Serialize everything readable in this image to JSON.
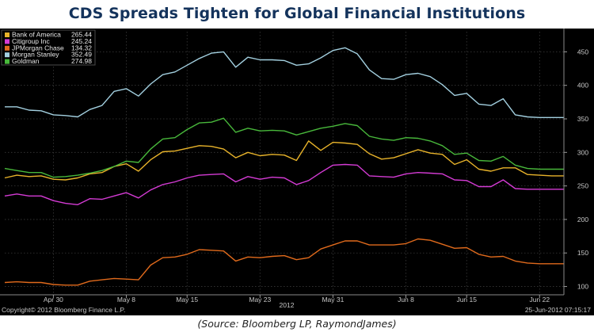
{
  "title": "CDS Spreads Tighten for Global Financial Institutions",
  "source": "(Source: Bloomberg LP, RaymondJames)",
  "footer": {
    "copyright": "Copyright© 2012 Bloomberg Finance L.P.",
    "timestamp": "25-Jun-2012 07:15:17"
  },
  "chart_data": {
    "type": "line",
    "title": "CDS Spreads Tighten for Global Financial Institutions",
    "xlabel": "2012",
    "ylabel": "",
    "ylim": [
      90,
      480
    ],
    "grid": true,
    "legend_position": "top-left",
    "y_ticks": [
      100,
      150,
      200,
      250,
      300,
      350,
      400,
      450
    ],
    "x_ticks": [
      "Apr 30",
      "May 8",
      "May 15",
      "May 23",
      "May 31",
      "Jun 8",
      "Jun 15",
      "Jun 22"
    ],
    "x_tick_positions": [
      4,
      10,
      15,
      21,
      27,
      33,
      38,
      44
    ],
    "x_year_label": "2012",
    "x_count": 47,
    "series": [
      {
        "name": "Bank of America",
        "last": "265.44",
        "color": "#e8b32a",
        "values": [
          262,
          266,
          264,
          265,
          260,
          259,
          262,
          268,
          270,
          279,
          283,
          272,
          289,
          301,
          302,
          306,
          310,
          309,
          305,
          292,
          300,
          295,
          297,
          296,
          288,
          317,
          303,
          315,
          314,
          312,
          298,
          290,
          292,
          298,
          304,
          299,
          297,
          282,
          289,
          275,
          272,
          277,
          277,
          267,
          266,
          265,
          265
        ]
      },
      {
        "name": "Citigroup Inc",
        "last": "245.24",
        "color": "#d43bd4",
        "values": [
          235,
          238,
          235,
          235,
          228,
          224,
          222,
          231,
          230,
          235,
          240,
          232,
          244,
          252,
          256,
          262,
          266,
          267,
          268,
          256,
          264,
          260,
          263,
          262,
          252,
          258,
          270,
          281,
          282,
          281,
          265,
          264,
          263,
          268,
          270,
          269,
          268,
          259,
          258,
          249,
          249,
          259,
          246,
          245,
          245,
          245,
          245
        ]
      },
      {
        "name": "JPMorgan Chase",
        "last": "134.32",
        "color": "#e06a1c",
        "values": [
          106,
          107,
          106,
          106,
          103,
          102,
          102,
          108,
          110,
          112,
          111,
          110,
          132,
          143,
          144,
          148,
          155,
          154,
          153,
          138,
          144,
          143,
          145,
          146,
          140,
          143,
          156,
          162,
          168,
          168,
          162,
          162,
          162,
          164,
          171,
          169,
          163,
          157,
          158,
          148,
          144,
          145,
          138,
          135,
          134,
          134,
          134
        ]
      },
      {
        "name": "Morgan Stanley",
        "last": "352.49",
        "color": "#a3d0e0",
        "values": [
          368,
          368,
          363,
          362,
          356,
          355,
          353,
          364,
          370,
          391,
          395,
          384,
          402,
          416,
          420,
          430,
          440,
          448,
          450,
          427,
          442,
          438,
          438,
          437,
          430,
          432,
          441,
          452,
          456,
          447,
          423,
          410,
          409,
          416,
          418,
          413,
          401,
          385,
          388,
          372,
          370,
          380,
          356,
          353,
          352,
          352,
          352
        ]
      },
      {
        "name": "Goldman",
        "last": "274.98",
        "color": "#48b83b",
        "values": [
          276,
          273,
          270,
          270,
          263,
          264,
          266,
          269,
          273,
          279,
          287,
          285,
          305,
          320,
          322,
          334,
          344,
          345,
          351,
          330,
          336,
          332,
          333,
          332,
          326,
          331,
          336,
          339,
          343,
          340,
          324,
          320,
          318,
          322,
          321,
          317,
          310,
          297,
          299,
          288,
          287,
          294,
          281,
          276,
          275,
          275,
          275
        ]
      }
    ]
  }
}
